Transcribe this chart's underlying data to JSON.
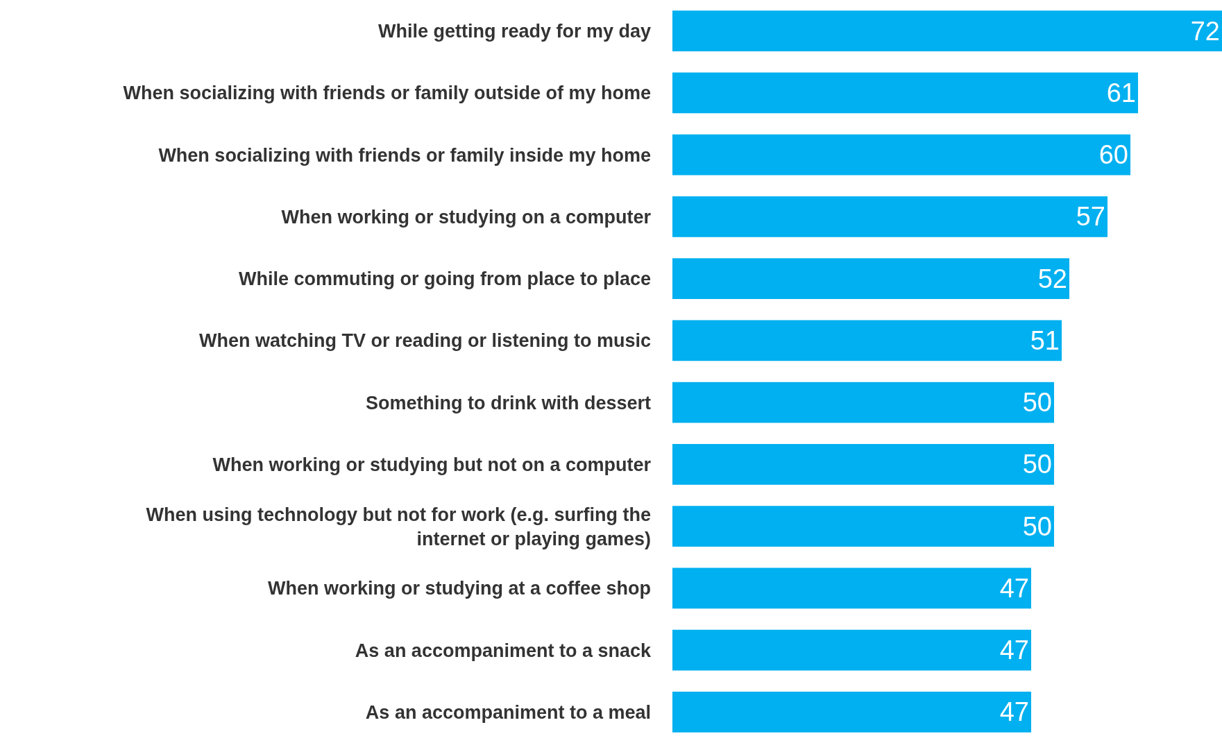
{
  "chart_data": {
    "type": "bar",
    "orientation": "horizontal",
    "xlim": [
      0,
      72
    ],
    "tick_labels": "y",
    "data_labels": true,
    "categories": [
      "While getting ready for my day",
      "When socializing with friends or family outside of my home",
      "When socializing with friends or family inside my home",
      "When working or studying on a computer",
      "While commuting or going from place to place",
      "When watching TV or reading or listening to music",
      "Something to drink with dessert",
      "When working or studying but not on a computer",
      "When using technology but not for work (e.g. surfing the internet or playing games)",
      "When working or studying at a coffee shop",
      "As an accompaniment to a snack",
      "As an accompaniment to a meal"
    ],
    "values": [
      72,
      61,
      60,
      57,
      52,
      51,
      50,
      50,
      50,
      47,
      47,
      47
    ],
    "color": "#00b0f0"
  }
}
